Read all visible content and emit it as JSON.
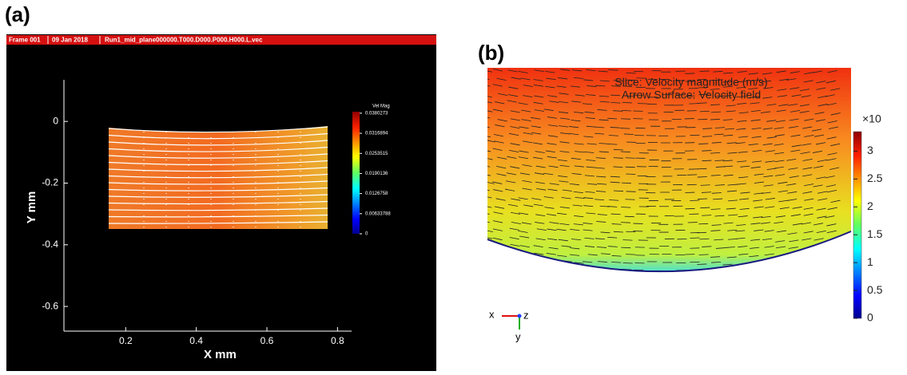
{
  "panels": [
    {
      "label": "(a)",
      "header": [
        "Frame 001",
        "09 Jan 2018",
        "Run1_mid_plane000000.T000.D000.P000.H000.L.vec"
      ],
      "x_label": "X mm",
      "y_label": "Y mm",
      "xlim": [
        0.025,
        0.84
      ],
      "ylim": [
        -0.68,
        0.135
      ],
      "xticks": [
        0.2,
        0.4,
        0.6,
        0.8
      ],
      "yticks": [
        0,
        -0.2,
        -0.4,
        -0.6
      ],
      "colorbar": {
        "title": "Vel Mag",
        "lim": [
          0,
          0.0385
        ],
        "ticks": [
          0.0380273,
          0.0316894,
          0.0253515,
          0.0190136,
          0.0126758,
          0.00633788,
          0
        ]
      }
    },
    {
      "label": "(b)",
      "title": [
        "Slice: Velocity magnitude (m/s)",
        "Arrow Surface: Velocity field"
      ],
      "colorbar": {
        "multiplier": "×10",
        "lim": [
          0,
          3.35
        ],
        "ticks": [
          0,
          0.5,
          1,
          1.5,
          2,
          2.5,
          3
        ]
      },
      "triad": [
        "x",
        "z",
        "y"
      ]
    }
  ]
}
